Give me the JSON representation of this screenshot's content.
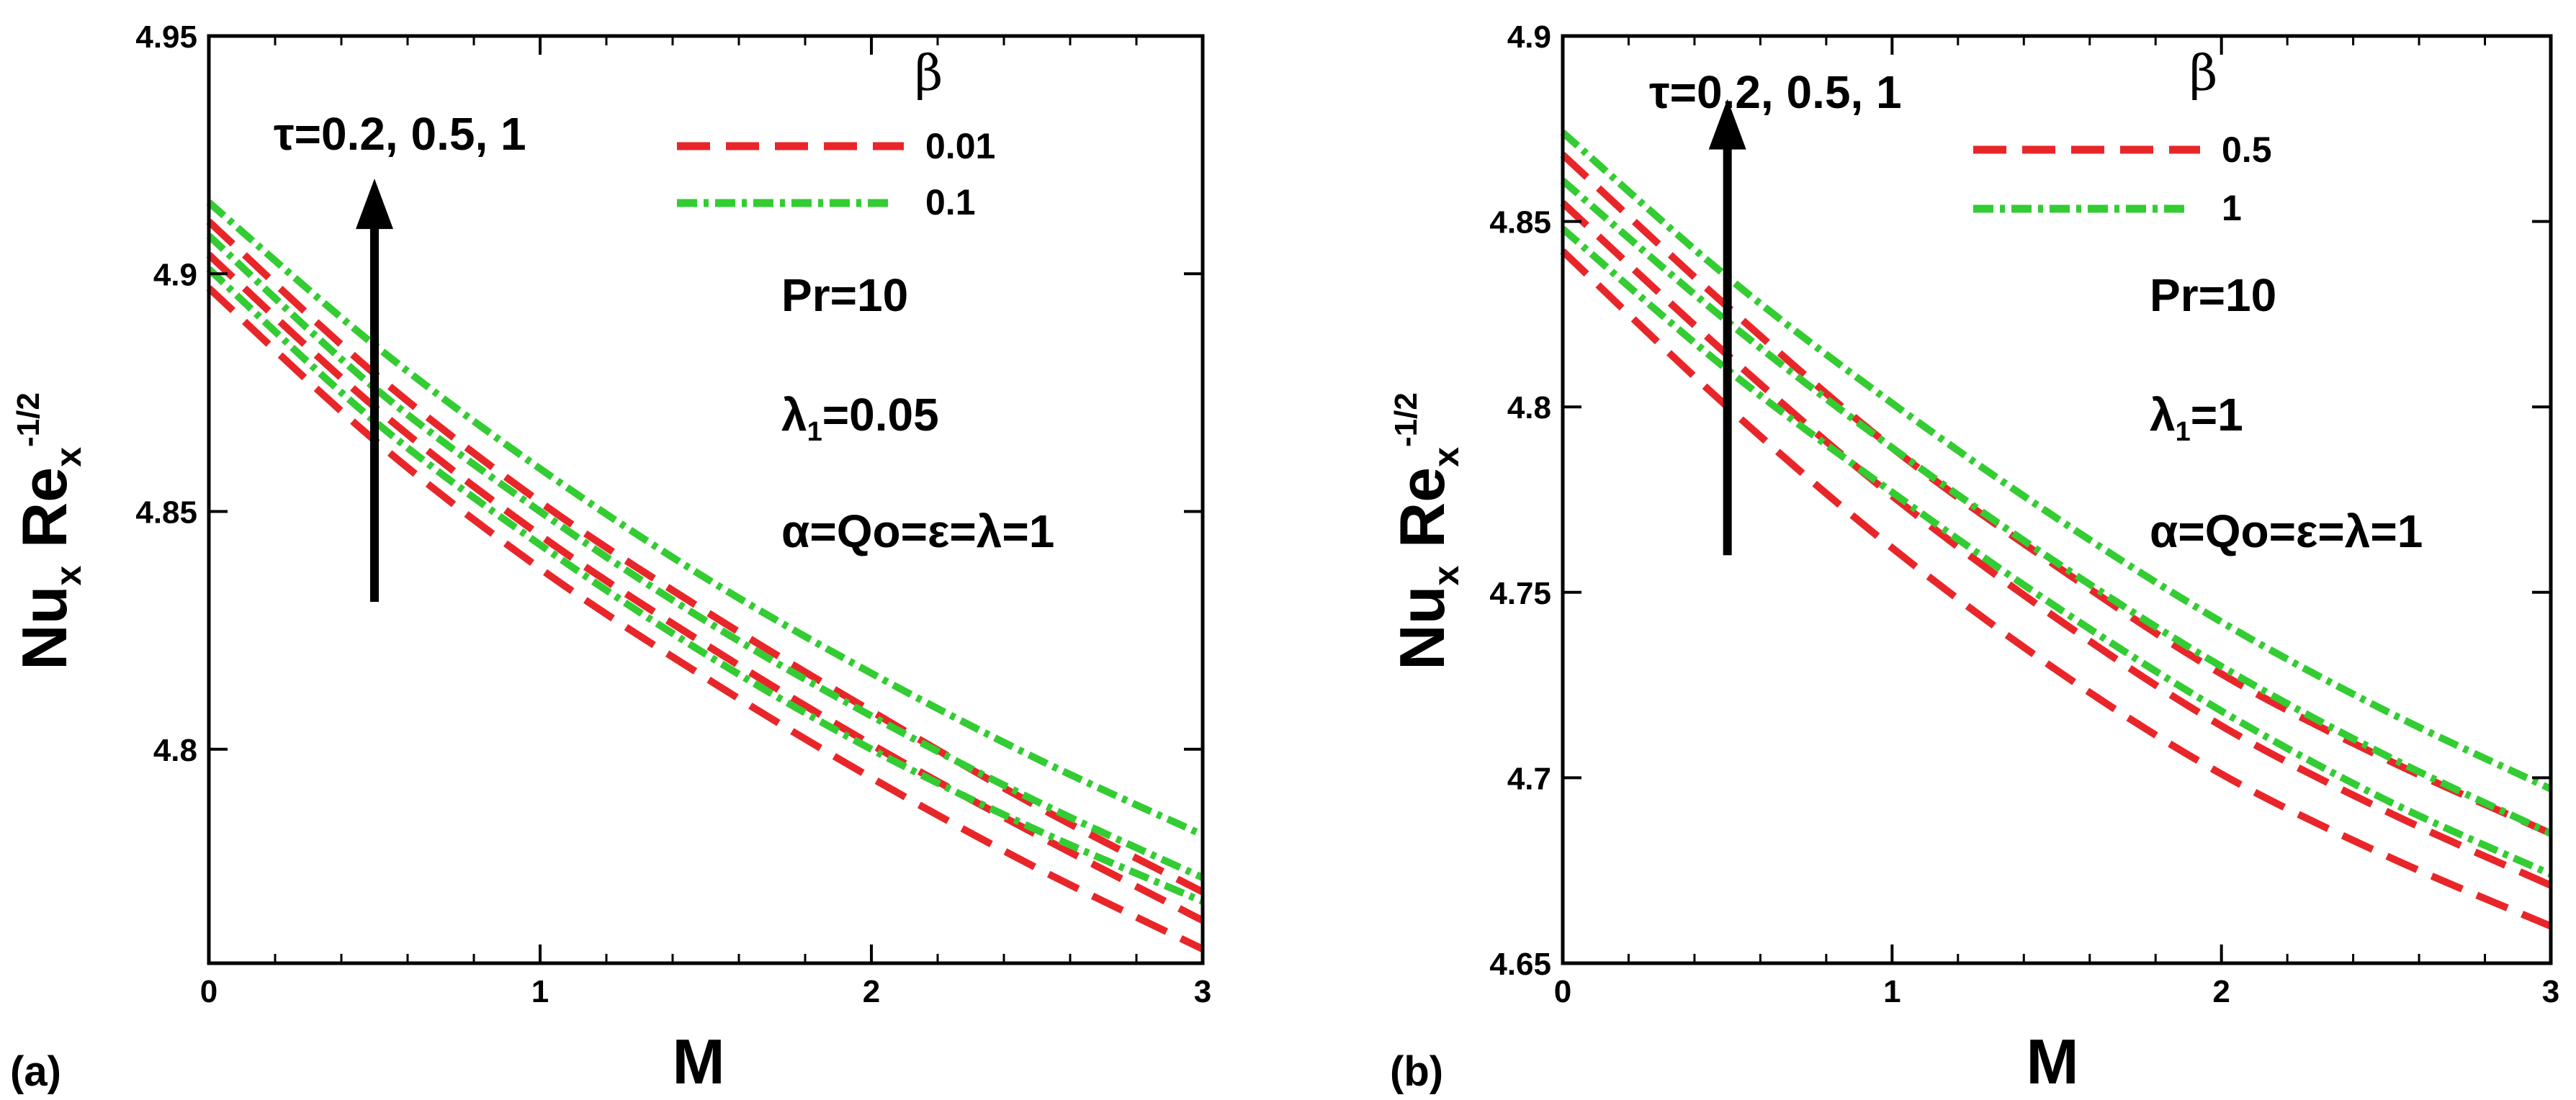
{
  "chart_data": [
    {
      "type": "line",
      "panel_label": "(a)",
      "xlabel": "M",
      "ylabel": {
        "main": "Nu",
        "sub1": "x",
        "main2": " Re",
        "sub2": "x",
        "sup": "-1/2"
      },
      "xlim": [
        0,
        3
      ],
      "ylim": [
        4.755,
        4.95
      ],
      "xticks": [
        0,
        1,
        2,
        3
      ],
      "yticks": [
        4.8,
        4.85,
        4.9,
        4.95
      ],
      "xtick_labels": [
        "0",
        "1",
        "2",
        "3"
      ],
      "ytick_labels": [
        "4.8",
        "4.85",
        "4.9",
        "4.95"
      ],
      "legend": {
        "title": "β",
        "entries": [
          {
            "label": "0.01",
            "color": "#e8262a",
            "style": "dashed"
          },
          {
            "label": "0.1",
            "color": "#33cc33",
            "style": "dashdot"
          }
        ]
      },
      "arrow_label": "τ=0.2, 0.5, 1",
      "arrow_x": 0.5,
      "arrow_y": [
        4.831,
        4.92
      ],
      "annotations": [
        "Pr=10",
        "λ₁=0.05",
        "α=Qo=ε=λ=1"
      ],
      "x": [
        0,
        0.5,
        1,
        1.5,
        2,
        2.5,
        3
      ],
      "series": [
        {
          "name": "β=0.01, τ=0.2",
          "color": "#e8262a",
          "style": "dashed",
          "values": [
            4.897,
            4.865,
            4.838,
            4.815,
            4.794,
            4.775,
            4.758
          ]
        },
        {
          "name": "β=0.01, τ=0.5",
          "color": "#e8262a",
          "style": "dashed",
          "values": [
            4.904,
            4.872,
            4.845,
            4.822,
            4.801,
            4.782,
            4.764
          ]
        },
        {
          "name": "β=0.01, τ=1",
          "color": "#e8262a",
          "style": "dashed",
          "values": [
            4.911,
            4.879,
            4.852,
            4.829,
            4.808,
            4.788,
            4.77
          ]
        },
        {
          "name": "β=0.1, τ=0.2",
          "color": "#33cc33",
          "style": "dashdot",
          "values": [
            4.901,
            4.869,
            4.843,
            4.82,
            4.8,
            4.783,
            4.768
          ]
        },
        {
          "name": "β=0.1, τ=0.5",
          "color": "#33cc33",
          "style": "dashdot",
          "values": [
            4.908,
            4.876,
            4.85,
            4.827,
            4.807,
            4.789,
            4.773
          ]
        },
        {
          "name": "β=0.1, τ=1",
          "color": "#33cc33",
          "style": "dashdot",
          "values": [
            4.915,
            4.885,
            4.859,
            4.836,
            4.816,
            4.798,
            4.782
          ]
        }
      ]
    },
    {
      "type": "line",
      "panel_label": "(b)",
      "xlabel": "M",
      "ylabel": {
        "main": "Nu",
        "sub1": "x",
        "main2": " Re",
        "sub2": "x",
        "sup": "-1/2"
      },
      "xlim": [
        0,
        3
      ],
      "ylim": [
        4.65,
        4.9
      ],
      "xticks": [
        0,
        1,
        2,
        3
      ],
      "yticks": [
        4.65,
        4.7,
        4.75,
        4.8,
        4.85,
        4.9
      ],
      "xtick_labels": [
        "0",
        "1",
        "2",
        "3"
      ],
      "ytick_labels": [
        "4.65",
        "4.7",
        "4.75",
        "4.8",
        "4.85",
        "4.9"
      ],
      "legend": {
        "title": "β",
        "entries": [
          {
            "label": "0.5",
            "color": "#e8262a",
            "style": "dashed"
          },
          {
            "label": "1",
            "color": "#33cc33",
            "style": "dashdot"
          }
        ]
      },
      "arrow_label": "τ=0.2, 0.5, 1",
      "arrow_x": 0.5,
      "arrow_y": [
        4.76,
        4.883
      ],
      "annotations": [
        "Pr=10",
        "λ₁=1",
        "α=Qo=ε=λ=1"
      ],
      "x": [
        0,
        0.5,
        1,
        1.5,
        2,
        2.5,
        3
      ],
      "series": [
        {
          "name": "β=0.5, τ=0.2",
          "color": "#e8262a",
          "style": "dashed",
          "values": [
            4.842,
            4.8,
            4.762,
            4.729,
            4.701,
            4.679,
            4.66
          ]
        },
        {
          "name": "β=0.5, τ=0.5",
          "color": "#e8262a",
          "style": "dashed",
          "values": [
            4.855,
            4.814,
            4.776,
            4.743,
            4.714,
            4.691,
            4.671
          ]
        },
        {
          "name": "β=0.5, τ=1",
          "color": "#e8262a",
          "style": "dashed",
          "values": [
            4.868,
            4.827,
            4.789,
            4.757,
            4.728,
            4.705,
            4.685
          ]
        },
        {
          "name": "β=1, τ=0.2",
          "color": "#33cc33",
          "style": "dashdot",
          "values": [
            4.848,
            4.81,
            4.777,
            4.746,
            4.718,
            4.694,
            4.674
          ]
        },
        {
          "name": "β=1, τ=0.5",
          "color": "#33cc33",
          "style": "dashdot",
          "values": [
            4.861,
            4.823,
            4.789,
            4.758,
            4.73,
            4.706,
            4.685
          ]
        },
        {
          "name": "β=1, τ=1",
          "color": "#33cc33",
          "style": "dashdot",
          "values": [
            4.874,
            4.835,
            4.801,
            4.77,
            4.742,
            4.718,
            4.697
          ]
        }
      ]
    }
  ]
}
